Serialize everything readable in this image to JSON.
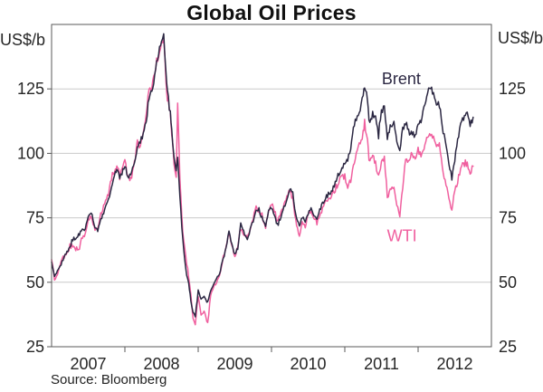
{
  "chart_data": {
    "type": "line",
    "title": "Global Oil Prices",
    "source": "Source: Bloomberg",
    "grid": "horizontal-only",
    "legend": "inline-series-labels",
    "y_axis": {
      "unit": "US$/b",
      "min": 25,
      "max": 150,
      "tick_values": [
        25,
        50,
        75,
        100,
        125
      ],
      "gridline_values": [
        50,
        75,
        100,
        125
      ],
      "labels_on_both_sides": true
    },
    "x_axis": {
      "start_year": 2007,
      "end_year_exclusive": 2013,
      "boundary_tick_years": [
        2008,
        2009,
        2010,
        2011,
        2012
      ],
      "year_labels": [
        "2007",
        "2008",
        "2009",
        "2010",
        "2011",
        "2012"
      ]
    },
    "colors": {
      "brent": "#2b2742",
      "wti": "#f0609f",
      "gridline": "#c9c9c9",
      "axis_box": "#595959",
      "tick_text": "#262626"
    },
    "series": [
      {
        "name": "WTI",
        "color": "#f0609f",
        "noise_amp": 1.6,
        "label": {
          "text": "WTI",
          "t": 2011.78,
          "value": 68
        },
        "points": [
          [
            2007.0,
            59
          ],
          [
            2007.04,
            51
          ],
          [
            2007.08,
            53
          ],
          [
            2007.13,
            58
          ],
          [
            2007.17,
            60
          ],
          [
            2007.21,
            61
          ],
          [
            2007.25,
            64
          ],
          [
            2007.29,
            64
          ],
          [
            2007.33,
            63
          ],
          [
            2007.38,
            63
          ],
          [
            2007.42,
            68
          ],
          [
            2007.46,
            69
          ],
          [
            2007.5,
            74
          ],
          [
            2007.54,
            75
          ],
          [
            2007.58,
            71
          ],
          [
            2007.63,
            71
          ],
          [
            2007.67,
            76
          ],
          [
            2007.71,
            80
          ],
          [
            2007.75,
            82
          ],
          [
            2007.79,
            86
          ],
          [
            2007.83,
            92
          ],
          [
            2007.87,
            94
          ],
          [
            2007.9,
            96
          ],
          [
            2007.93,
            90
          ],
          [
            2007.96,
            94
          ],
          [
            2008.0,
            97
          ],
          [
            2008.04,
            91
          ],
          [
            2008.08,
            90
          ],
          [
            2008.13,
            96
          ],
          [
            2008.17,
            104
          ],
          [
            2008.21,
            102
          ],
          [
            2008.25,
            109
          ],
          [
            2008.29,
            114
          ],
          [
            2008.33,
            124
          ],
          [
            2008.38,
            127
          ],
          [
            2008.42,
            134
          ],
          [
            2008.46,
            138
          ],
          [
            2008.5,
            142
          ],
          [
            2008.53,
            145
          ],
          [
            2008.56,
            128
          ],
          [
            2008.58,
            121
          ],
          [
            2008.62,
            116
          ],
          [
            2008.65,
            104
          ],
          [
            2008.67,
            96
          ],
          [
            2008.7,
            91
          ],
          [
            2008.72,
            120
          ],
          [
            2008.75,
            90
          ],
          [
            2008.79,
            70
          ],
          [
            2008.83,
            60
          ],
          [
            2008.87,
            52
          ],
          [
            2008.9,
            45
          ],
          [
            2008.93,
            36
          ],
          [
            2008.96,
            34
          ],
          [
            2009.0,
            45
          ],
          [
            2009.04,
            37
          ],
          [
            2009.08,
            39
          ],
          [
            2009.13,
            34
          ],
          [
            2009.17,
            45
          ],
          [
            2009.21,
            48
          ],
          [
            2009.25,
            50
          ],
          [
            2009.29,
            52
          ],
          [
            2009.33,
            58
          ],
          [
            2009.38,
            64
          ],
          [
            2009.42,
            70
          ],
          [
            2009.46,
            64
          ],
          [
            2009.5,
            60
          ],
          [
            2009.54,
            64
          ],
          [
            2009.58,
            71
          ],
          [
            2009.62,
            69
          ],
          [
            2009.67,
            68
          ],
          [
            2009.71,
            71
          ],
          [
            2009.75,
            75
          ],
          [
            2009.79,
            79
          ],
          [
            2009.83,
            78
          ],
          [
            2009.87,
            76
          ],
          [
            2009.92,
            71
          ],
          [
            2009.96,
            78
          ],
          [
            2010.0,
            81
          ],
          [
            2010.04,
            78
          ],
          [
            2010.08,
            73
          ],
          [
            2010.13,
            77
          ],
          [
            2010.17,
            80
          ],
          [
            2010.21,
            83
          ],
          [
            2010.25,
            85
          ],
          [
            2010.29,
            83
          ],
          [
            2010.33,
            74
          ],
          [
            2010.38,
            68
          ],
          [
            2010.42,
            73
          ],
          [
            2010.46,
            72
          ],
          [
            2010.5,
            76
          ],
          [
            2010.54,
            78
          ],
          [
            2010.58,
            75
          ],
          [
            2010.62,
            73
          ],
          [
            2010.67,
            76
          ],
          [
            2010.71,
            80
          ],
          [
            2010.75,
            82
          ],
          [
            2010.79,
            83
          ],
          [
            2010.83,
            84
          ],
          [
            2010.87,
            86
          ],
          [
            2010.92,
            89
          ],
          [
            2010.96,
            91
          ],
          [
            2011.0,
            91
          ],
          [
            2011.04,
            87
          ],
          [
            2011.08,
            89
          ],
          [
            2011.13,
            97
          ],
          [
            2011.17,
            102
          ],
          [
            2011.21,
            104
          ],
          [
            2011.25,
            108
          ],
          [
            2011.27,
            112
          ],
          [
            2011.31,
            105
          ],
          [
            2011.33,
            97
          ],
          [
            2011.38,
            100
          ],
          [
            2011.42,
            96
          ],
          [
            2011.46,
            91
          ],
          [
            2011.5,
            97
          ],
          [
            2011.54,
            98
          ],
          [
            2011.58,
            83
          ],
          [
            2011.62,
            86
          ],
          [
            2011.67,
            87
          ],
          [
            2011.71,
            80
          ],
          [
            2011.75,
            76
          ],
          [
            2011.79,
            87
          ],
          [
            2011.83,
            97
          ],
          [
            2011.87,
            98
          ],
          [
            2011.92,
            99
          ],
          [
            2011.96,
            98
          ],
          [
            2012.0,
            101
          ],
          [
            2012.04,
            99
          ],
          [
            2012.08,
            103
          ],
          [
            2012.13,
            107
          ],
          [
            2012.17,
            107
          ],
          [
            2012.21,
            105
          ],
          [
            2012.25,
            103
          ],
          [
            2012.29,
            104
          ],
          [
            2012.33,
            95
          ],
          [
            2012.38,
            88
          ],
          [
            2012.42,
            83
          ],
          [
            2012.46,
            78
          ],
          [
            2012.5,
            85
          ],
          [
            2012.54,
            89
          ],
          [
            2012.58,
            94
          ],
          [
            2012.62,
            96
          ],
          [
            2012.67,
            96
          ],
          [
            2012.71,
            92
          ],
          [
            2012.75,
            95
          ]
        ]
      },
      {
        "name": "Brent",
        "color": "#2b2742",
        "noise_amp": 1.3,
        "label": {
          "text": "Brent",
          "t": 2011.77,
          "value": 129
        },
        "points": [
          [
            2007.0,
            58
          ],
          [
            2007.04,
            52
          ],
          [
            2007.08,
            54.5
          ],
          [
            2007.13,
            57
          ],
          [
            2007.17,
            60
          ],
          [
            2007.21,
            62
          ],
          [
            2007.25,
            64
          ],
          [
            2007.29,
            66.5
          ],
          [
            2007.33,
            67
          ],
          [
            2007.38,
            68.5
          ],
          [
            2007.42,
            70.5
          ],
          [
            2007.46,
            71
          ],
          [
            2007.5,
            75.5
          ],
          [
            2007.54,
            77.5
          ],
          [
            2007.58,
            72
          ],
          [
            2007.63,
            70
          ],
          [
            2007.67,
            74.5
          ],
          [
            2007.71,
            77
          ],
          [
            2007.75,
            80
          ],
          [
            2007.79,
            83
          ],
          [
            2007.83,
            88.5
          ],
          [
            2007.87,
            92.5
          ],
          [
            2007.9,
            94
          ],
          [
            2007.93,
            90
          ],
          [
            2007.96,
            92.5
          ],
          [
            2008.0,
            95.5
          ],
          [
            2008.04,
            90
          ],
          [
            2008.08,
            91.5
          ],
          [
            2008.13,
            96
          ],
          [
            2008.17,
            102
          ],
          [
            2008.21,
            104
          ],
          [
            2008.25,
            107.5
          ],
          [
            2008.29,
            112
          ],
          [
            2008.33,
            122
          ],
          [
            2008.38,
            126
          ],
          [
            2008.42,
            132
          ],
          [
            2008.46,
            138.5
          ],
          [
            2008.5,
            143
          ],
          [
            2008.53,
            145.5
          ],
          [
            2008.56,
            131
          ],
          [
            2008.58,
            124
          ],
          [
            2008.62,
            115
          ],
          [
            2008.65,
            105
          ],
          [
            2008.67,
            98
          ],
          [
            2008.7,
            93.5
          ],
          [
            2008.72,
            99
          ],
          [
            2008.75,
            84
          ],
          [
            2008.79,
            66
          ],
          [
            2008.83,
            55
          ],
          [
            2008.87,
            49.5
          ],
          [
            2008.9,
            43
          ],
          [
            2008.93,
            38.5
          ],
          [
            2008.96,
            37
          ],
          [
            2009.0,
            46.5
          ],
          [
            2009.04,
            43.5
          ],
          [
            2009.08,
            44.5
          ],
          [
            2009.13,
            42
          ],
          [
            2009.17,
            47
          ],
          [
            2009.21,
            49
          ],
          [
            2009.25,
            51.5
          ],
          [
            2009.29,
            53
          ],
          [
            2009.33,
            58
          ],
          [
            2009.38,
            63
          ],
          [
            2009.42,
            69.5
          ],
          [
            2009.46,
            65
          ],
          [
            2009.5,
            60.5
          ],
          [
            2009.54,
            63.5
          ],
          [
            2009.58,
            72.5
          ],
          [
            2009.62,
            70
          ],
          [
            2009.67,
            67
          ],
          [
            2009.71,
            70.5
          ],
          [
            2009.75,
            74
          ],
          [
            2009.79,
            77.5
          ],
          [
            2009.83,
            78
          ],
          [
            2009.87,
            75
          ],
          [
            2009.92,
            72
          ],
          [
            2009.96,
            77.5
          ],
          [
            2010.0,
            79.5
          ],
          [
            2010.04,
            76
          ],
          [
            2010.08,
            72
          ],
          [
            2010.13,
            75.5
          ],
          [
            2010.17,
            79
          ],
          [
            2010.21,
            82
          ],
          [
            2010.25,
            86
          ],
          [
            2010.29,
            84.5
          ],
          [
            2010.33,
            76
          ],
          [
            2010.38,
            72
          ],
          [
            2010.42,
            75.5
          ],
          [
            2010.46,
            74
          ],
          [
            2010.5,
            76.5
          ],
          [
            2010.54,
            79
          ],
          [
            2010.58,
            76
          ],
          [
            2010.62,
            74.5
          ],
          [
            2010.67,
            78.5
          ],
          [
            2010.71,
            81.5
          ],
          [
            2010.75,
            83
          ],
          [
            2010.79,
            84.5
          ],
          [
            2010.83,
            85.5
          ],
          [
            2010.87,
            89
          ],
          [
            2010.92,
            92
          ],
          [
            2010.96,
            93.5
          ],
          [
            2011.0,
            96.5
          ],
          [
            2011.04,
            98
          ],
          [
            2011.08,
            102.5
          ],
          [
            2011.13,
            111
          ],
          [
            2011.17,
            114.5
          ],
          [
            2011.21,
            117
          ],
          [
            2011.25,
            122.5
          ],
          [
            2011.27,
            126
          ],
          [
            2011.31,
            120.5
          ],
          [
            2011.33,
            112.5
          ],
          [
            2011.38,
            115
          ],
          [
            2011.42,
            114
          ],
          [
            2011.46,
            107
          ],
          [
            2011.5,
            117
          ],
          [
            2011.54,
            117.5
          ],
          [
            2011.58,
            106.5
          ],
          [
            2011.62,
            110
          ],
          [
            2011.67,
            112.5
          ],
          [
            2011.71,
            104
          ],
          [
            2011.75,
            101.5
          ],
          [
            2011.79,
            109.5
          ],
          [
            2011.83,
            112
          ],
          [
            2011.87,
            108
          ],
          [
            2011.92,
            107.5
          ],
          [
            2011.96,
            107
          ],
          [
            2012.0,
            111
          ],
          [
            2012.04,
            112.5
          ],
          [
            2012.08,
            118.5
          ],
          [
            2012.13,
            123
          ],
          [
            2012.17,
            125.5
          ],
          [
            2012.21,
            123
          ],
          [
            2012.25,
            120
          ],
          [
            2012.29,
            119
          ],
          [
            2012.33,
            110
          ],
          [
            2012.38,
            103
          ],
          [
            2012.42,
            96
          ],
          [
            2012.46,
            90.5
          ],
          [
            2012.5,
            98
          ],
          [
            2012.54,
            104.5
          ],
          [
            2012.58,
            112
          ],
          [
            2012.62,
            113.5
          ],
          [
            2012.67,
            115.5
          ],
          [
            2012.71,
            110.5
          ],
          [
            2012.75,
            114
          ]
        ]
      }
    ]
  }
}
